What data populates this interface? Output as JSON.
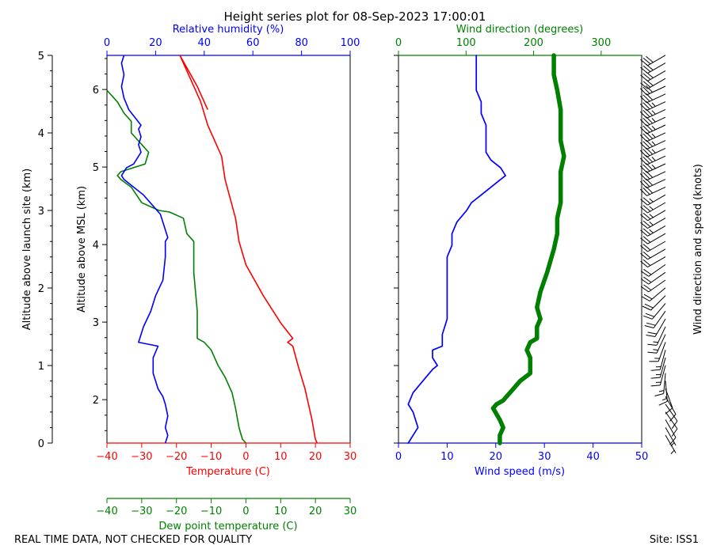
{
  "title": "Height series plot for 08-Sep-2023 17:00:01",
  "footer_left": "REAL TIME DATA, NOT CHECKED FOR QUALITY",
  "footer_right": "Site: ISS1",
  "colors": {
    "black": "#000000",
    "red": "#ff0000",
    "blue": "#0000ff",
    "green": "#008000"
  },
  "chart_data": [
    {
      "type": "line",
      "name": "thermo-panel",
      "axes": {
        "left_outer": {
          "label": "Altitude above launch site (km)",
          "ticks": [
            0,
            1,
            2,
            3,
            4,
            5
          ],
          "range": [
            0,
            5
          ]
        },
        "left_inner": {
          "label": "Altitude above MSL (km)",
          "ticks": [
            2,
            3,
            4,
            5,
            6
          ],
          "range": [
            1.44,
            6.44
          ]
        },
        "bottom_temperature": {
          "label": "Temperature (C)",
          "ticks": [
            -40,
            -30,
            -20,
            -10,
            0,
            10,
            20,
            30
          ],
          "range": [
            -40,
            30
          ]
        },
        "bottom_dewpoint": {
          "label": "Dew point temperature (C)",
          "ticks": [
            -40,
            -30,
            -20,
            -10,
            0,
            10,
            20,
            30
          ],
          "range": [
            -40,
            30
          ]
        },
        "top_rh": {
          "label": "Relative humidity (%)",
          "ticks": [
            0,
            20,
            40,
            60,
            80,
            100
          ],
          "range": [
            0,
            100
          ]
        }
      },
      "series": [
        {
          "name": "Temperature",
          "color": "#ff0000",
          "x_axis": "temperature",
          "points": [
            [
              20.5,
              0
            ],
            [
              20,
              0.05
            ],
            [
              19,
              0.3
            ],
            [
              17,
              0.7
            ],
            [
              15,
              1.0
            ],
            [
              13.5,
              1.25
            ],
            [
              12,
              1.3
            ],
            [
              13.5,
              1.35
            ],
            [
              10,
              1.55
            ],
            [
              5,
              1.9
            ],
            [
              0,
              2.3
            ],
            [
              -2,
              2.6
            ],
            [
              -3,
              2.9
            ],
            [
              -6,
              3.4
            ],
            [
              -7,
              3.7
            ],
            [
              -11,
              4.1
            ],
            [
              -13,
              4.4
            ],
            [
              -16,
              4.7
            ],
            [
              -19,
              5.0
            ],
            [
              -14,
              4.6
            ],
            [
              -11,
              4.3
            ]
          ]
        },
        {
          "name": "Dew point",
          "color": "#008000",
          "x_axis": "dewpoint",
          "points": [
            [
              0,
              0
            ],
            [
              -1,
              0.05
            ],
            [
              -2,
              0.2
            ],
            [
              -3,
              0.45
            ],
            [
              -4,
              0.65
            ],
            [
              -6,
              0.85
            ],
            [
              -8,
              1.0
            ],
            [
              -10,
              1.2
            ],
            [
              -12,
              1.3
            ],
            [
              -14,
              1.35
            ],
            [
              -14,
              1.7
            ],
            [
              -15,
              2.2
            ],
            [
              -15,
              2.6
            ],
            [
              -17,
              2.7
            ],
            [
              -18,
              2.9
            ],
            [
              -22,
              2.98
            ],
            [
              -25,
              3.0
            ],
            [
              -30,
              3.1
            ],
            [
              -33,
              3.3
            ],
            [
              -36,
              3.4
            ],
            [
              -37,
              3.45
            ],
            [
              -36,
              3.5
            ],
            [
              -29,
              3.6
            ],
            [
              -28,
              3.75
            ],
            [
              -30,
              3.85
            ],
            [
              -33,
              4.0
            ],
            [
              -33,
              4.15
            ],
            [
              -35,
              4.25
            ],
            [
              -37,
              4.4
            ],
            [
              -40,
              4.55
            ]
          ]
        },
        {
          "name": "Relative humidity",
          "color": "#0000ff",
          "x_axis": "rh",
          "points": [
            [
              24,
              0
            ],
            [
              25,
              0.1
            ],
            [
              24,
              0.2
            ],
            [
              25,
              0.35
            ],
            [
              24,
              0.5
            ],
            [
              23,
              0.6
            ],
            [
              21,
              0.7
            ],
            [
              19,
              0.9
            ],
            [
              19,
              1.1
            ],
            [
              21,
              1.25
            ],
            [
              13,
              1.3
            ],
            [
              15,
              1.5
            ],
            [
              18,
              1.7
            ],
            [
              20,
              1.9
            ],
            [
              23,
              2.1
            ],
            [
              24,
              2.4
            ],
            [
              24,
              2.6
            ],
            [
              25,
              2.65
            ],
            [
              24,
              2.75
            ],
            [
              23,
              2.85
            ],
            [
              22,
              2.95
            ],
            [
              15,
              3.2
            ],
            [
              11,
              3.3
            ],
            [
              7,
              3.4
            ],
            [
              6,
              3.45
            ],
            [
              8,
              3.55
            ],
            [
              11,
              3.6
            ],
            [
              12,
              3.65
            ],
            [
              14,
              3.75
            ],
            [
              13,
              3.85
            ],
            [
              14,
              3.95
            ],
            [
              13,
              4.05
            ],
            [
              14,
              4.1
            ],
            [
              9,
              4.3
            ],
            [
              7,
              4.45
            ],
            [
              6,
              4.6
            ],
            [
              7,
              4.75
            ],
            [
              6,
              4.9
            ],
            [
              7,
              5.0
            ]
          ]
        }
      ]
    },
    {
      "type": "line",
      "name": "wind-panel",
      "axes": {
        "bottom_wind_speed": {
          "label": "Wind speed (m/s)",
          "ticks": [
            0,
            10,
            20,
            30,
            40,
            50
          ],
          "range": [
            0,
            50
          ]
        },
        "top_wind_direction": {
          "label": "Wind direction (degrees)",
          "ticks": [
            0,
            100,
            200,
            300
          ],
          "range": [
            0,
            360
          ]
        },
        "right": {
          "label": "Wind direction and speed (knots)"
        }
      },
      "series": [
        {
          "name": "Wind speed",
          "color": "#0000ff",
          "x_axis": "speed",
          "points": [
            [
              2,
              0
            ],
            [
              3,
              0.1
            ],
            [
              4,
              0.2
            ],
            [
              3,
              0.4
            ],
            [
              2,
              0.5
            ],
            [
              3,
              0.65
            ],
            [
              5,
              0.8
            ],
            [
              7,
              0.95
            ],
            [
              8,
              1.0
            ],
            [
              7,
              1.1
            ],
            [
              7,
              1.2
            ],
            [
              9,
              1.25
            ],
            [
              9,
              1.4
            ],
            [
              10,
              1.6
            ],
            [
              10,
              1.8
            ],
            [
              10,
              2.0
            ],
            [
              10,
              2.2
            ],
            [
              10,
              2.4
            ],
            [
              11,
              2.55
            ],
            [
              11,
              2.7
            ],
            [
              12,
              2.85
            ],
            [
              14,
              3.0
            ],
            [
              15,
              3.1
            ],
            [
              17,
              3.2
            ],
            [
              20,
              3.35
            ],
            [
              22,
              3.45
            ],
            [
              21,
              3.55
            ],
            [
              19,
              3.65
            ],
            [
              18,
              3.75
            ],
            [
              18,
              3.85
            ],
            [
              18,
              3.95
            ],
            [
              18,
              4.0
            ],
            [
              18,
              4.1
            ],
            [
              17,
              4.25
            ],
            [
              17,
              4.4
            ],
            [
              16,
              4.55
            ],
            [
              16,
              4.7
            ],
            [
              16,
              4.85
            ],
            [
              16,
              5.0
            ]
          ]
        },
        {
          "name": "Wind direction",
          "color": "#008000",
          "x_axis": "direction",
          "points": [
            [
              150,
              0
            ],
            [
              150,
              0.1
            ],
            [
              155,
              0.2
            ],
            [
              150,
              0.3
            ],
            [
              140,
              0.45
            ],
            [
              145,
              0.5
            ],
            [
              155,
              0.55
            ],
            [
              170,
              0.7
            ],
            [
              180,
              0.8
            ],
            [
              195,
              0.9
            ],
            [
              195,
              1.0
            ],
            [
              195,
              1.1
            ],
            [
              190,
              1.2
            ],
            [
              195,
              1.3
            ],
            [
              205,
              1.35
            ],
            [
              205,
              1.5
            ],
            [
              210,
              1.6
            ],
            [
              205,
              1.75
            ],
            [
              210,
              1.95
            ],
            [
              220,
              2.2
            ],
            [
              230,
              2.5
            ],
            [
              235,
              2.7
            ],
            [
              235,
              2.9
            ],
            [
              240,
              3.1
            ],
            [
              240,
              3.3
            ],
            [
              240,
              3.5
            ],
            [
              245,
              3.7
            ],
            [
              240,
              3.9
            ],
            [
              240,
              4.1
            ],
            [
              240,
              4.3
            ],
            [
              235,
              4.55
            ],
            [
              230,
              4.75
            ],
            [
              230,
              5.0
            ]
          ]
        }
      ],
      "barbs": {
        "color": "#000000",
        "heights": [
          0,
          0.1,
          0.2,
          0.3,
          0.4,
          0.5,
          0.6,
          0.7,
          0.8,
          0.9,
          1.0,
          1.1,
          1.2,
          1.3,
          1.4,
          1.5,
          1.6,
          1.7,
          1.8,
          1.9,
          2.0,
          2.1,
          2.2,
          2.3,
          2.4,
          2.5,
          2.6,
          2.7,
          2.8,
          2.9,
          3.0,
          3.1,
          3.2,
          3.3,
          3.4,
          3.5,
          3.6,
          3.7,
          3.8,
          3.9,
          4.0,
          4.1,
          4.2,
          4.3,
          4.4,
          4.5,
          4.6,
          4.7,
          4.8,
          4.9
        ],
        "direction_deg": [
          150,
          150,
          150,
          145,
          145,
          150,
          160,
          175,
          185,
          195,
          195,
          195,
          200,
          205,
          205,
          210,
          215,
          220,
          225,
          230,
          235,
          235,
          235,
          240,
          240,
          240,
          240,
          240,
          240,
          240,
          240,
          240,
          245,
          245,
          245,
          245,
          245,
          245,
          245,
          245,
          245,
          245,
          245,
          245,
          245,
          245,
          240,
          240,
          240,
          240
        ],
        "speed_kt": [
          5,
          6,
          8,
          8,
          8,
          10,
          12,
          13,
          14,
          15,
          15,
          15,
          15,
          15,
          16,
          18,
          18,
          20,
          20,
          20,
          20,
          20,
          21,
          21,
          22,
          22,
          22,
          23,
          24,
          25,
          26,
          27,
          29,
          30,
          32,
          34,
          35,
          37,
          36,
          35,
          35,
          34,
          33,
          33,
          32,
          32,
          32,
          31,
          31,
          31
        ]
      }
    }
  ]
}
